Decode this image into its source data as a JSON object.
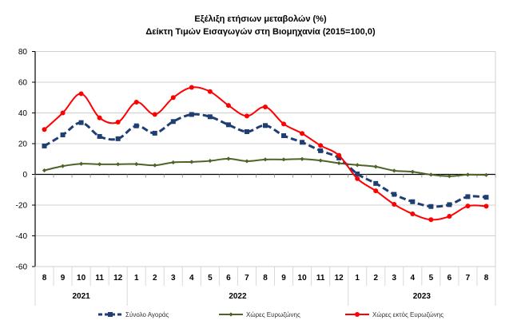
{
  "chart_data": {
    "type": "line",
    "title": "Εξέλιξη ετήσιων μεταβολών (%)",
    "subtitle": "Δείκτη Τιμών Εισαγωγών στη Βιομηχανία (2015=100,0)",
    "xlabel": "",
    "ylabel": "",
    "ylim": [
      -60,
      80
    ],
    "yticks": [
      "80",
      "60",
      "40",
      "20",
      "0",
      "-20",
      "-40",
      "-60"
    ],
    "ytick_values": [
      80,
      60,
      40,
      20,
      0,
      -20,
      -40,
      -60
    ],
    "grid": true,
    "legend_position": "bottom",
    "categories": [
      "8",
      "9",
      "10",
      "11",
      "12",
      "1",
      "2",
      "3",
      "4",
      "5",
      "6",
      "7",
      "8",
      "9",
      "10",
      "11",
      "12",
      "1",
      "2",
      "3",
      "4",
      "5",
      "6",
      "7",
      "8"
    ],
    "years": [
      {
        "label": "2021",
        "start": 0,
        "end": 4
      },
      {
        "label": "2022",
        "start": 5,
        "end": 16
      },
      {
        "label": "2023",
        "start": 17,
        "end": 24
      }
    ],
    "series": [
      {
        "name": "Σύνολο Αγοράς",
        "color": "#1f3f73",
        "style": "dashed",
        "marker": "square",
        "values": [
          18.5,
          25.7,
          33.7,
          24.7,
          23.2,
          31.6,
          26.8,
          34.4,
          39.0,
          37.5,
          32.3,
          27.8,
          31.8,
          25.2,
          20.9,
          15.4,
          10.7,
          0.3,
          -5.9,
          -13.0,
          -17.8,
          -20.9,
          -19.7,
          -14.5,
          -14.9
        ]
      },
      {
        "name": "Χώρες Ευρωζώνης",
        "color": "#4f6228",
        "style": "solid",
        "marker": "diamond",
        "values": [
          2.6,
          5.4,
          6.9,
          6.6,
          6.6,
          6.7,
          5.9,
          7.8,
          8.1,
          8.8,
          10.2,
          8.6,
          9.7,
          9.7,
          10.0,
          9.0,
          7.3,
          6.1,
          5.0,
          2.4,
          1.7,
          -0.2,
          -1.2,
          -0.2,
          -0.4
        ]
      },
      {
        "name": "Χώρες εκτός Ευρωζώνης",
        "color": "#ff0000",
        "style": "solid",
        "marker": "circle",
        "values": [
          29.2,
          40.0,
          52.5,
          36.8,
          34.0,
          47.0,
          39.0,
          50.0,
          56.6,
          53.9,
          44.9,
          38.0,
          43.9,
          32.8,
          26.6,
          18.8,
          12.4,
          -2.8,
          -10.7,
          -19.5,
          -25.7,
          -29.5,
          -27.3,
          -20.6,
          -20.7
        ]
      }
    ]
  }
}
